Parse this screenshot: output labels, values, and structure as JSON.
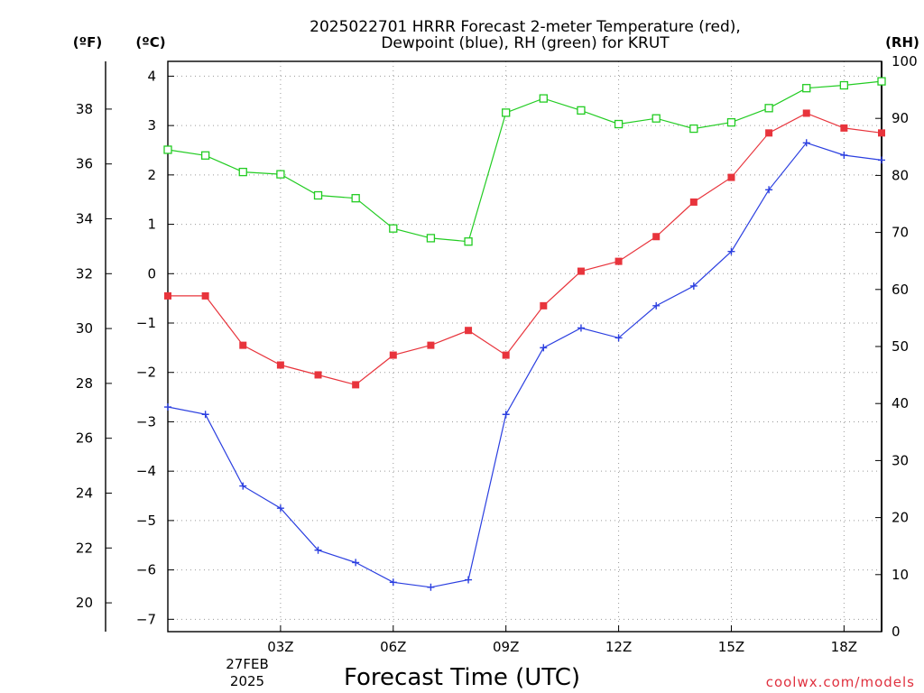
{
  "chart_data": {
    "type": "line",
    "title_lines": [
      "2025022701 HRRR Forecast 2-meter Temperature (red),",
      "Dewpoint (blue), RH (green) for KRUT"
    ],
    "xlabel": "Forecast Time (UTC)",
    "date_label": [
      "27FEB",
      "2025"
    ],
    "credit": "coolwx.com/models",
    "x_ticks": [
      {
        "x": 3,
        "label": "03Z"
      },
      {
        "x": 6,
        "label": "06Z"
      },
      {
        "x": 9,
        "label": "09Z"
      },
      {
        "x": 12,
        "label": "12Z"
      },
      {
        "x": 15,
        "label": "15Z"
      },
      {
        "x": 18,
        "label": "18Z"
      }
    ],
    "xlim": [
      0,
      19
    ],
    "y_left_c": {
      "unit": "(ºC)",
      "lim": [
        -7.25,
        4.3
      ],
      "ticks": [
        -7,
        -6,
        -5,
        -4,
        -3,
        -2,
        -1,
        0,
        1,
        2,
        3,
        4
      ]
    },
    "y_left_f": {
      "unit": "(ºF)",
      "ticks": [
        20,
        22,
        24,
        26,
        28,
        30,
        32,
        34,
        36,
        38
      ]
    },
    "y_right_rh": {
      "unit": "(RH)",
      "lim": [
        0,
        100
      ],
      "ticks": [
        0,
        10,
        20,
        30,
        40,
        50,
        60,
        70,
        80,
        90,
        100
      ]
    },
    "colors": {
      "temperature": "#e8343c",
      "dewpoint": "#2b3fe0",
      "rh": "#22cc22",
      "grid": "#9a9a9a"
    },
    "x": [
      0,
      1,
      2,
      3,
      4,
      5,
      6,
      7,
      8,
      9,
      10,
      11,
      12,
      13,
      14,
      15,
      16,
      17,
      18,
      19
    ],
    "series": [
      {
        "name": "Temperature",
        "axis": "C",
        "marker": "filled-square",
        "values": [
          -0.45,
          -0.45,
          -1.45,
          -1.85,
          -2.05,
          -2.25,
          -1.65,
          -1.45,
          -1.15,
          -1.65,
          -0.65,
          0.05,
          0.25,
          0.75,
          1.45,
          1.95,
          2.85,
          3.25,
          2.95,
          2.85
        ]
      },
      {
        "name": "Dewpoint",
        "axis": "C",
        "marker": "plus",
        "values": [
          -2.7,
          -2.85,
          -4.3,
          -4.75,
          -5.6,
          -5.85,
          -6.25,
          -6.35,
          -6.2,
          -2.85,
          -1.5,
          -1.1,
          -1.3,
          -0.65,
          -0.25,
          0.45,
          1.7,
          2.65,
          2.4,
          2.3
        ]
      },
      {
        "name": "RH",
        "axis": "RH",
        "marker": "open-square",
        "values": [
          84.5,
          83.5,
          80.6,
          80.2,
          76.5,
          76.0,
          70.7,
          69.0,
          68.4,
          91.0,
          93.5,
          91.4,
          89.0,
          90.0,
          88.2,
          89.3,
          91.8,
          95.3,
          95.8,
          96.5
        ]
      }
    ]
  }
}
